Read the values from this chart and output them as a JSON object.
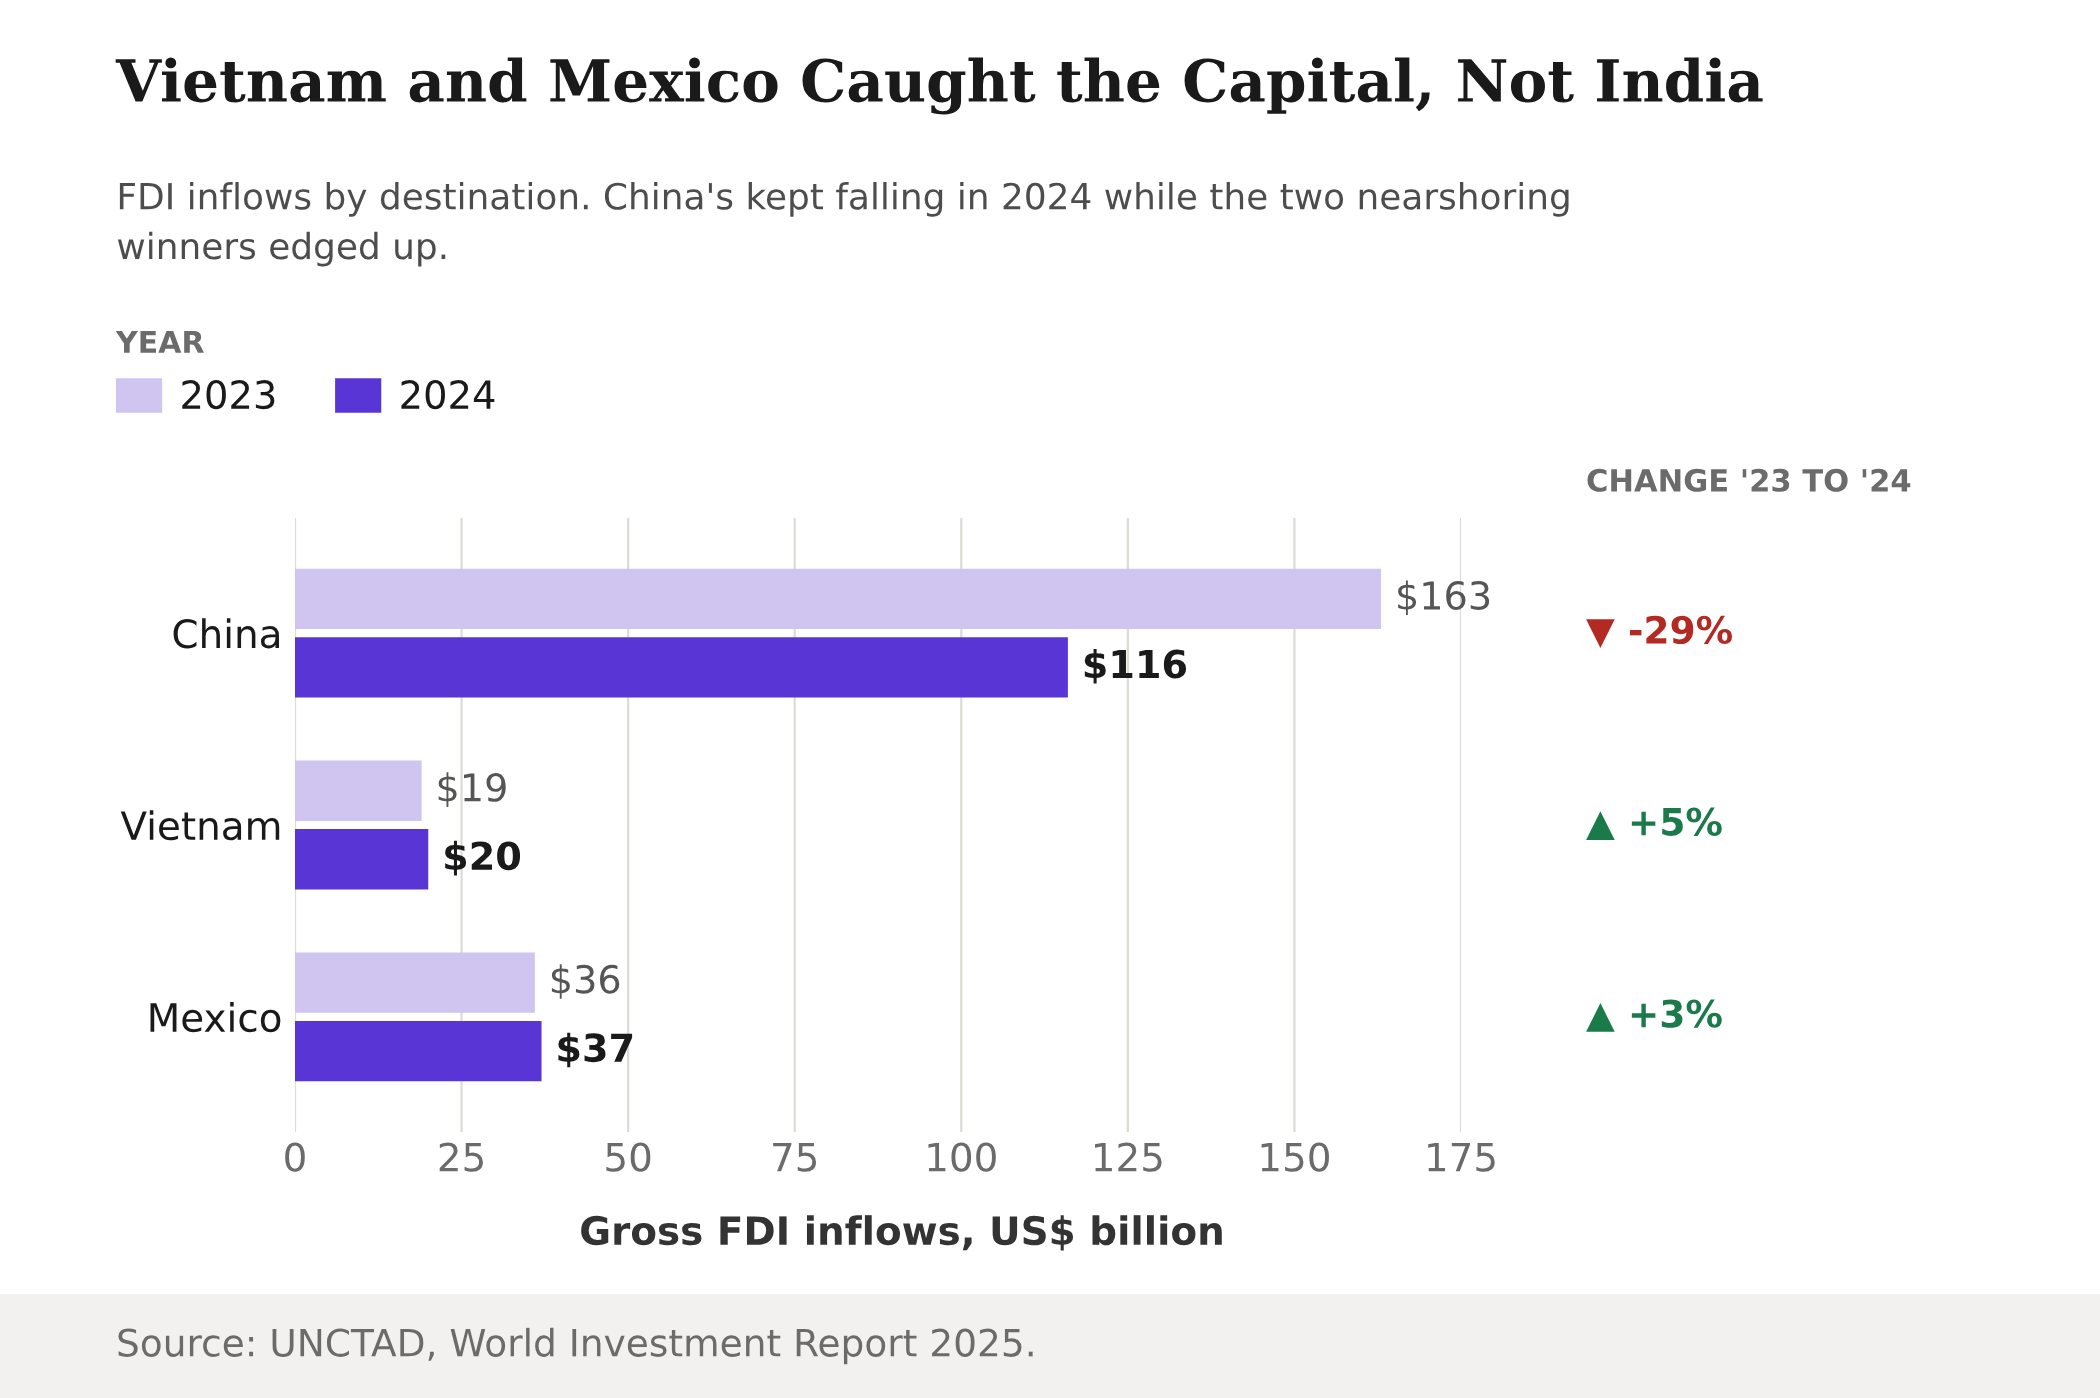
{
  "chart_data": {
    "type": "bar",
    "orientation": "horizontal",
    "title": "Vietnam and Mexico Caught the Capital, Not India",
    "subtitle": "FDI inflows by destination. China's kept falling in 2024 while the two nearshoring winners edged up.",
    "xlabel": "Gross FDI inflows, US$ billion",
    "legend_title": "YEAR",
    "categories": [
      "China",
      "Vietnam",
      "Mexico"
    ],
    "series": [
      {
        "name": "2023",
        "color": "#d0c4f0",
        "values": [
          163,
          19,
          36
        ],
        "value_labels": [
          "$163",
          "$19",
          "$36"
        ]
      },
      {
        "name": "2024",
        "color": "#5a35d6",
        "values": [
          116,
          20,
          37
        ],
        "value_labels": [
          "$116",
          "$20",
          "$37"
        ]
      }
    ],
    "xlim": [
      0,
      175
    ],
    "xticks": [
      0,
      25,
      50,
      75,
      100,
      125,
      150,
      175
    ],
    "grid": "x",
    "legend": "top left",
    "annotations": [
      "CHANGE '23 TO '24",
      "▼ -29%",
      "▲ +5%",
      "▲ +3%",
      "Source: UNCTAD, World Investment Report 2025."
    ]
  }
}
